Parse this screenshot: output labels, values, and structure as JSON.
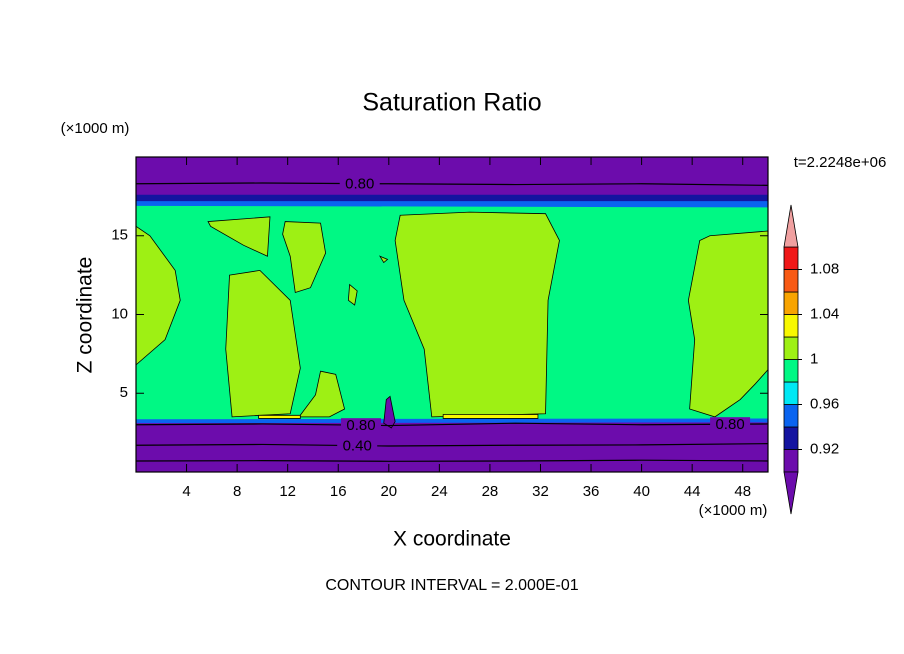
{
  "chart_data": {
    "type": "contour",
    "title": "Saturation Ratio",
    "x_label": "X coordinate",
    "y_label": "Z coordinate",
    "x_unit": "(×1000 m)",
    "y_unit": "(×1000 m)",
    "time_label": "t=2.2248e+06",
    "footer": "CONTOUR INTERVAL = 2.000E-01",
    "xlim": [
      0,
      50
    ],
    "ylim": [
      0,
      20
    ],
    "xticks": [
      4,
      8,
      12,
      16,
      20,
      24,
      28,
      32,
      36,
      40,
      44,
      48
    ],
    "yticks": [
      5,
      10,
      15
    ],
    "colorbar": {
      "levels": [
        0.9,
        0.92,
        0.94,
        0.96,
        0.98,
        1,
        1.02,
        1.04,
        1.06,
        1.08,
        1.1
      ],
      "colors": [
        "#6c0cac",
        "#6c0cac",
        "#1414a0",
        "#0a64f0",
        "#00e8f4",
        "#00f884",
        "#9ef014",
        "#f8f800",
        "#f8a400",
        "#f85a14",
        "#f01818",
        "#f0a0a0"
      ],
      "ticks": [
        0.92,
        0.96,
        1,
        1.04,
        1.08
      ]
    },
    "regions": [
      {
        "value": 0.5,
        "x": [
          0,
          50,
          50,
          0
        ],
        "z": [
          0,
          0,
          20,
          20
        ]
      },
      {
        "value": 0.93,
        "x": [
          0,
          50,
          50,
          0
        ],
        "z": [
          16.5,
          16.5,
          17.6,
          17.6
        ]
      },
      {
        "value": 0.95,
        "x": [
          0,
          50,
          50,
          0
        ],
        "z": [
          16.6,
          16.6,
          17.2,
          17.2
        ]
      },
      {
        "value": 0.95,
        "x": [
          0,
          50,
          50,
          0
        ],
        "z": [
          3.1,
          3.15,
          3.45,
          3.4
        ]
      },
      {
        "value": 0.99,
        "x": [
          0,
          50,
          50,
          0
        ],
        "z": [
          3.35,
          3.4,
          16.8,
          16.9
        ]
      },
      {
        "value": 1.01,
        "x": [
          0,
          1.1,
          3.1,
          3.5,
          2.3,
          0
        ],
        "z": [
          15.6,
          15,
          12.8,
          10.9,
          8.4,
          6.8
        ]
      },
      {
        "value": 1.01,
        "x": [
          5.7,
          10.6,
          10.4,
          8.5,
          5.9
        ],
        "z": [
          15.9,
          16.2,
          13.7,
          14.4,
          15.6
        ]
      },
      {
        "value": 1.01,
        "x": [
          11.8,
          14.6,
          15,
          13.8,
          12.6,
          12.2,
          11.6
        ],
        "z": [
          15.9,
          15.8,
          13.9,
          11.7,
          11.4,
          13.7,
          15.1
        ]
      },
      {
        "value": 1.01,
        "x": [
          7.4,
          9.8,
          12.2,
          13,
          12.2,
          7.6,
          7.1
        ],
        "z": [
          12.5,
          12.8,
          10.9,
          6.6,
          3.7,
          3.5,
          7.8
        ]
      },
      {
        "value": 1.01,
        "x": [
          14.6,
          15.8,
          16.5,
          15.3,
          12.9,
          14.2
        ],
        "z": [
          6.4,
          6.2,
          4,
          3.5,
          3.5,
          4.9
        ]
      },
      {
        "value": 1.01,
        "x": [
          16.9,
          17.5,
          17.3,
          16.8
        ],
        "z": [
          11.9,
          11.5,
          10.6,
          10.9
        ]
      },
      {
        "value": 1.01,
        "x": [
          19.3,
          19.9,
          19.6
        ],
        "z": [
          13.7,
          13.5,
          13.3
        ]
      },
      {
        "value": 1.01,
        "x": [
          20.9,
          26.4,
          32.4,
          33.5,
          32.6,
          32.4,
          23.4,
          22.8,
          21.2,
          20.5
        ],
        "z": [
          16.3,
          16.5,
          16.4,
          14.7,
          10.9,
          3.7,
          3.5,
          7.8,
          10.9,
          14.7
        ]
      },
      {
        "value": 1.01,
        "x": [
          45.4,
          50,
          50,
          49,
          47.8,
          45.8,
          43.8,
          44.2,
          43.7,
          44.6
        ],
        "z": [
          15,
          15.3,
          6.5,
          5.6,
          4.6,
          3.5,
          4,
          8.4,
          10.9,
          14.7
        ]
      },
      {
        "value": 1.03,
        "x": [
          9.7,
          13,
          13,
          9.7
        ],
        "z": [
          3.4,
          3.4,
          3.6,
          3.6
        ]
      },
      {
        "value": 1.03,
        "x": [
          24.3,
          31.8,
          31.8,
          24.3
        ],
        "z": [
          3.4,
          3.4,
          3.65,
          3.65
        ]
      },
      {
        "value": 0.5,
        "x": [
          19.6,
          19.8,
          20.1,
          20.3,
          20.5,
          20.2
        ],
        "z": [
          3.1,
          4.6,
          4.8,
          4.0,
          3.2,
          2.8
        ]
      }
    ],
    "contour_lines": [
      {
        "level": 0.8,
        "label": "0.80",
        "x": [
          0,
          10,
          20,
          30,
          40,
          50
        ],
        "z": [
          18.3,
          18.35,
          18.3,
          18.25,
          18.3,
          18.2
        ],
        "label_x": [
          17.7
        ]
      },
      {
        "level": 0.8,
        "label": "0.80",
        "x": [
          0,
          10,
          20,
          30,
          40,
          50
        ],
        "z": [
          3.0,
          3.05,
          2.95,
          3.1,
          3.0,
          3.05
        ],
        "label_x": [
          17.8,
          47
        ]
      },
      {
        "level": 0.4,
        "label": "0.40",
        "x": [
          0,
          10,
          20,
          30,
          40,
          50
        ],
        "z": [
          1.7,
          1.75,
          1.65,
          1.7,
          1.72,
          1.8
        ],
        "label_x": [
          17.5
        ]
      },
      {
        "level": 0.2,
        "x": [
          0,
          10,
          20,
          30,
          40,
          50
        ],
        "z": [
          0.7,
          0.72,
          0.68,
          0.7,
          0.75,
          0.7
        ]
      }
    ]
  }
}
